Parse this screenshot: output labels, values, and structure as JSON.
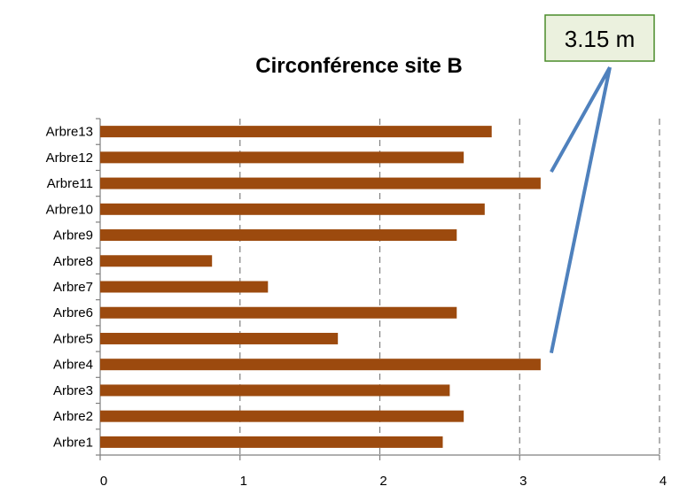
{
  "chart_data": {
    "type": "bar",
    "orientation": "horizontal",
    "title": "Circonférence site B",
    "xlabel": "",
    "ylabel": "",
    "categories": [
      "Arbre\u001f1\u001f",
      "Arbre\u001f2\u001f",
      "Arbre\u001f3\u001f",
      "Arbre\u001f4\u001f",
      "Arbre\u001f5\u001f",
      "Arbre\u001f6\u001f",
      "Arbre\u001f7\u001f",
      "Arbre\u001f8\u001f",
      "Arbre\u001f9\u001f",
      "Arbre\u001f10\u001f",
      "Arbre\u001f11\u001f",
      "Arbre\u001f12\u001f",
      "Arbre\u001f13\u001f"
    ],
    "values": [
      2.45,
      2.6,
      2.5,
      3.15,
      1.7,
      2.55,
      1.2,
      0.8,
      2.55,
      2.75,
      3.15,
      2.6,
      2.8
    ],
    "xlim": [
      0,
      4
    ],
    "xticks": [
      "0\u001f",
      "1\u001f",
      "2\u001f",
      "3\u001f",
      "4\u001f"
    ],
    "grid": "vertical dashed",
    "legend": "none",
    "bar_color": "#9C4A0E",
    "annotation": {
      "text": "3.15 m",
      "box_fill": "#EBF1DE",
      "box_border": "#4A8C2A",
      "pointer_color": "#4F81BD",
      "points_to": [
        "Arbre\u001f11\u001f",
        "Arbre\u001f4\u001f"
      ]
    }
  }
}
